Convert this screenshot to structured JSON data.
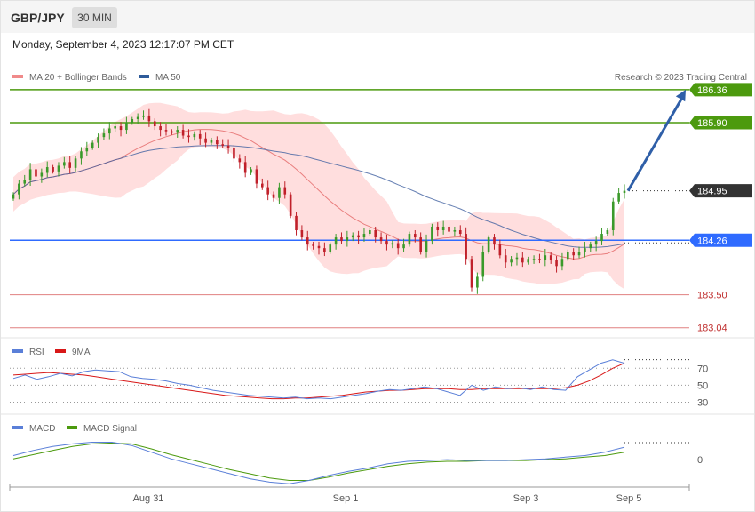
{
  "header": {
    "pair": "GBP/JPY",
    "timeframe": "30 MIN",
    "timestamp": "Monday, September 4, 2023 12:17:07 PM CET"
  },
  "legend": {
    "bb": "MA 20 + Bollinger Bands",
    "ma50": "MA 50",
    "credit": "Research © 2023 Trading Central",
    "rsi": "RSI",
    "rsi_ma": "9MA",
    "macd": "MACD",
    "macd_signal": "MACD Signal"
  },
  "colors": {
    "resistance": "#4c9a0e",
    "pivot": "#2f6bff",
    "support": "#e08080",
    "bull": "#3a9a2a",
    "bear": "#c0202a",
    "band": "#ffdede",
    "ma20": "#e05555",
    "ma50": "#4060a0",
    "arrow": "#2f5fa8",
    "current": "#333333"
  },
  "chart_data": [
    {
      "type": "candlestick",
      "x_labels": [
        "Aug 31",
        "Sep 1",
        "Sep 3",
        "Sep 5"
      ],
      "ylim": [
        182.9,
        186.52
      ],
      "levels": [
        {
          "label": "186.36",
          "value": 186.36,
          "kind": "resistance"
        },
        {
          "label": "185.90",
          "value": 185.9,
          "kind": "resistance"
        },
        {
          "label": "184.95",
          "value": 184.95,
          "kind": "current"
        },
        {
          "label": "184.26",
          "value": 184.26,
          "kind": "pivot"
        },
        {
          "label": "183.50",
          "value": 183.5,
          "kind": "support"
        },
        {
          "label": "183.04",
          "value": 183.04,
          "kind": "support"
        }
      ],
      "close": [
        184.9,
        185.05,
        185.1,
        185.25,
        185.15,
        185.2,
        185.28,
        185.22,
        185.3,
        185.35,
        185.27,
        185.4,
        185.5,
        185.55,
        185.62,
        185.7,
        185.75,
        185.82,
        185.85,
        185.8,
        185.9,
        185.95,
        185.98,
        186.0,
        185.92,
        185.85,
        185.8,
        185.78,
        185.76,
        185.8,
        185.72,
        185.7,
        185.74,
        185.68,
        185.62,
        185.66,
        185.6,
        185.58,
        185.55,
        185.4,
        185.35,
        185.2,
        185.25,
        185.05,
        185.0,
        184.9,
        184.85,
        185.0,
        184.9,
        184.6,
        184.4,
        184.3,
        184.2,
        184.18,
        184.15,
        184.1,
        184.2,
        184.3,
        184.25,
        184.3,
        184.33,
        184.3,
        184.35,
        184.4,
        184.3,
        184.25,
        184.2,
        184.22,
        184.15,
        184.2,
        184.35,
        184.3,
        184.1,
        184.25,
        184.45,
        184.4,
        184.45,
        184.38,
        184.4,
        184.35,
        184.0,
        183.6,
        183.75,
        184.1,
        184.3,
        184.2,
        184.05,
        183.95,
        184.0,
        184.02,
        183.95,
        184.0,
        184.0,
        183.98,
        184.05,
        183.98,
        183.9,
        184.0,
        184.1,
        184.05,
        184.1,
        184.15,
        184.2,
        184.25,
        184.35,
        184.4,
        184.8,
        184.92,
        184.95
      ]
    },
    {
      "type": "line",
      "title": "RSI",
      "y_ticks": [
        70,
        50,
        30
      ],
      "series": [
        {
          "name": "RSI",
          "values": [
            58,
            62,
            57,
            60,
            64,
            61,
            66,
            68,
            67,
            66,
            60,
            58,
            57,
            55,
            52,
            50,
            47,
            44,
            42,
            40,
            38,
            37,
            36,
            35,
            36,
            34,
            35,
            34,
            36,
            38,
            40,
            43,
            45,
            44,
            46,
            48,
            46,
            42,
            38,
            50,
            44,
            48,
            46,
            47,
            45,
            48,
            45,
            44,
            60,
            68,
            76,
            80,
            76
          ]
        },
        {
          "name": "9MA",
          "values": [
            62,
            63,
            64,
            65,
            64,
            63,
            62,
            60,
            58,
            56,
            54,
            52,
            50,
            48,
            46,
            44,
            42,
            40,
            38,
            37,
            36,
            35,
            34,
            34,
            35,
            35,
            36,
            37,
            38,
            40,
            42,
            43,
            44,
            44,
            45,
            46,
            46,
            46,
            45,
            45,
            46,
            46,
            46,
            46,
            46,
            46,
            46,
            47,
            50,
            55,
            62,
            70,
            76
          ]
        }
      ]
    },
    {
      "type": "line",
      "title": "MACD",
      "y_ticks": [
        0
      ],
      "series": [
        {
          "name": "MACD",
          "values": [
            0.06,
            0.12,
            0.17,
            0.2,
            0.22,
            0.22,
            0.18,
            0.1,
            0.02,
            -0.04,
            -0.1,
            -0.16,
            -0.22,
            -0.26,
            -0.28,
            -0.24,
            -0.18,
            -0.13,
            -0.09,
            -0.04,
            -0.01,
            0.0,
            0.01,
            0.0,
            0.0,
            0.0,
            0.01,
            0.02,
            0.04,
            0.06,
            0.1,
            0.16
          ]
        },
        {
          "name": "MACD Signal",
          "values": [
            0.02,
            0.07,
            0.12,
            0.17,
            0.2,
            0.21,
            0.2,
            0.14,
            0.07,
            0.01,
            -0.05,
            -0.11,
            -0.16,
            -0.21,
            -0.24,
            -0.24,
            -0.2,
            -0.15,
            -0.11,
            -0.07,
            -0.04,
            -0.02,
            -0.01,
            -0.01,
            0.0,
            0.0,
            0.0,
            0.01,
            0.02,
            0.04,
            0.06,
            0.1
          ]
        }
      ]
    }
  ]
}
